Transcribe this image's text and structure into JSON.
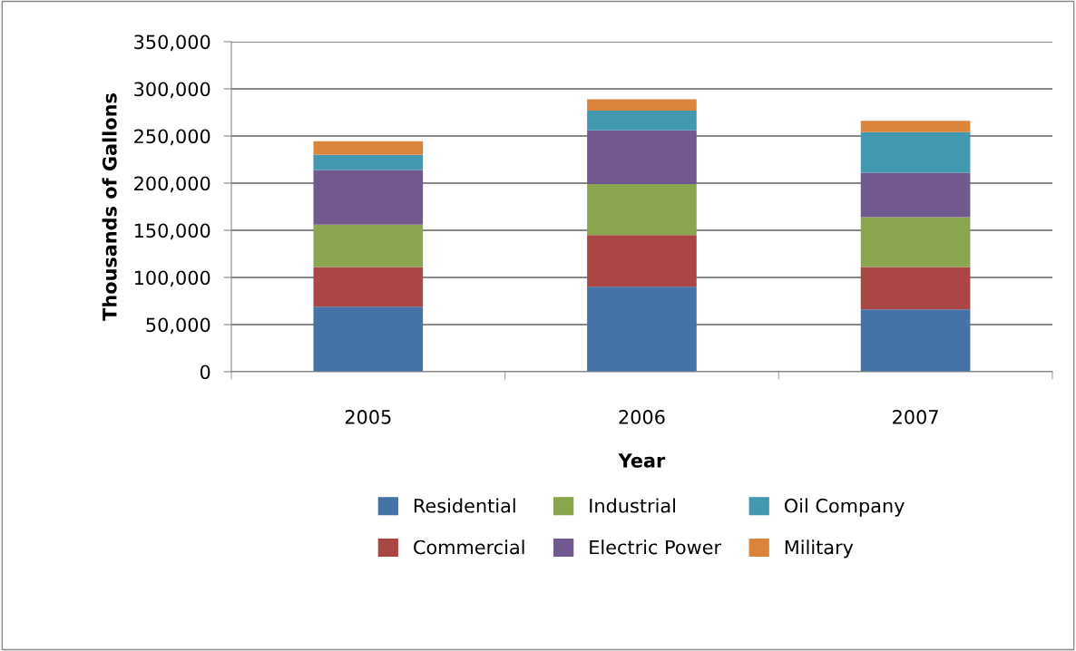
{
  "chart_data": {
    "type": "bar",
    "stacked": true,
    "xlabel": "Year",
    "ylabel": "Thousands of Gallons",
    "categories": [
      "2005",
      "2006",
      "2007"
    ],
    "series": [
      {
        "name": "Residential",
        "color": "#4572a7",
        "values": [
          69000,
          90000,
          66000
        ]
      },
      {
        "name": "Commercial",
        "color": "#aa4643",
        "values": [
          42000,
          55000,
          45000
        ]
      },
      {
        "name": "Industrial",
        "color": "#89a54e",
        "values": [
          45000,
          54000,
          53000
        ]
      },
      {
        "name": "Electric Power",
        "color": "#71588f",
        "values": [
          58000,
          57000,
          47000
        ]
      },
      {
        "name": "Oil Company",
        "color": "#4198af",
        "values": [
          16000,
          21000,
          43000
        ]
      },
      {
        "name": "Military",
        "color": "#db843d",
        "values": [
          14500,
          12000,
          12000
        ]
      }
    ],
    "ylim": [
      0,
      350000
    ],
    "yticks": [
      {
        "value": 0,
        "label": "0"
      },
      {
        "value": 50000,
        "label": "50,000"
      },
      {
        "value": 100000,
        "label": "100,000"
      },
      {
        "value": 150000,
        "label": "150,000"
      },
      {
        "value": 200000,
        "label": "200,000"
      },
      {
        "value": 250000,
        "label": "250,000"
      },
      {
        "value": 300000,
        "label": "300,000"
      },
      {
        "value": 350000,
        "label": "350,000"
      }
    ],
    "grid": "y",
    "legend": "bottom"
  }
}
